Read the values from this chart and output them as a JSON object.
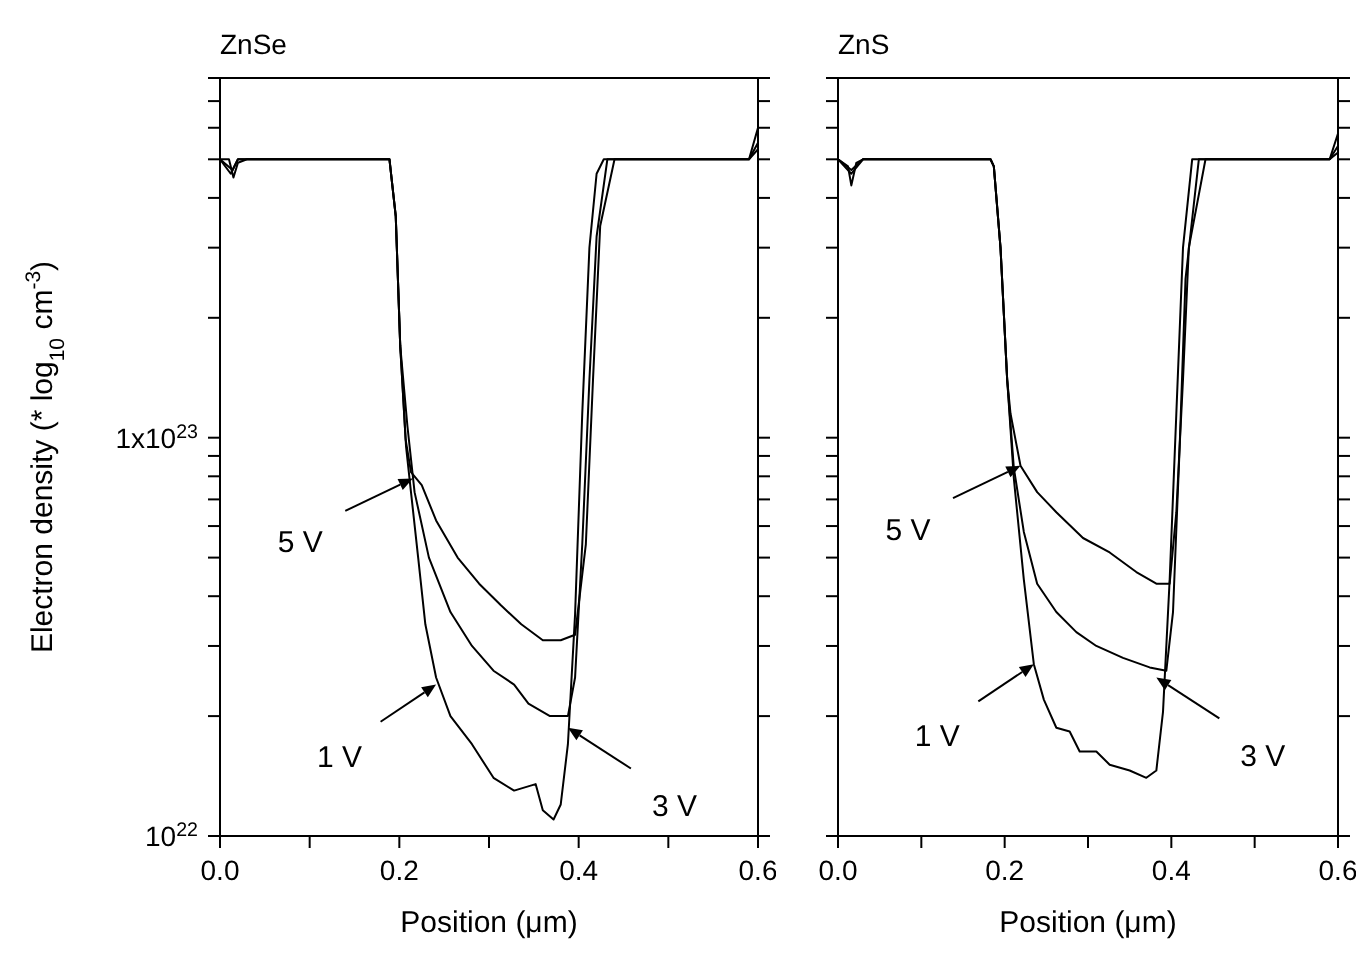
{
  "chart_data": [
    {
      "type": "line",
      "title": "ZnSe",
      "xlabel": "Position (μm)",
      "ylabel": "Electron density (* log$_{10}$ cm$^{-3}$)",
      "log": true,
      "marker": "none",
      "line_style": "solid",
      "xlim": [
        0,
        0.6
      ],
      "xticks": [
        {
          "value": 0,
          "label": "0.0"
        },
        {
          "value": 0.1,
          "label": null
        },
        0.2,
        {
          "value": 0.3,
          "label": null
        },
        0.4,
        {
          "value": 0.5,
          "label": null
        },
        0.6
      ],
      "ylim": [
        1e+22,
        8e+23
      ],
      "yticks": [
        {
          "value": 1e+22,
          "label": "10$^{22}$"
        },
        {
          "value": 2e+22,
          "label": null
        },
        {
          "value": 3e+22,
          "label": null
        },
        {
          "value": 4e+22,
          "label": null
        },
        {
          "value": 5e+22,
          "label": null
        },
        {
          "value": 6e+22,
          "label": null
        },
        {
          "value": 7e+22,
          "label": null
        },
        {
          "value": 8e+22,
          "label": null
        },
        {
          "value": 9e+22,
          "label": null
        },
        {
          "value": 1e+23,
          "label": "1x10$^{23}$"
        },
        {
          "value": 2e+23,
          "label": null
        },
        {
          "value": 3e+23,
          "label": null
        },
        {
          "value": 4e+23,
          "label": null
        },
        {
          "value": 5e+23,
          "label": null
        },
        {
          "value": 6e+23,
          "label": null
        },
        {
          "value": 7e+23,
          "label": null
        },
        {
          "value": 8e+23,
          "label": null
        }
      ],
      "series": [
        {
          "color": "#000000",
          "x": [
            0,
            0.01,
            0.015,
            0.02,
            0.03,
            0.1,
            0.189,
            0.196,
            0.201,
            0.2075,
            0.213,
            0.221,
            0.229,
            0.241,
            0.257,
            0.281,
            0.305,
            0.328,
            0.352,
            0.36,
            0.372,
            0.38,
            0.388,
            0.396,
            0.404,
            0.412,
            0.42,
            0.428,
            0.5,
            0.59,
            0.6
          ],
          "values": [
            5e+23,
            5e+23,
            4.5e+23,
            4.9e+23,
            5e+23,
            5e+23,
            5e+23,
            3.6e+23,
            1.7e+23,
            9.5e+22,
            7.3e+22,
            5e+22,
            3.4e+22,
            2.5e+22,
            2e+22,
            1.7e+22,
            1.4e+22,
            1.3e+22,
            1.35e+22,
            1.16e+22,
            1.1e+22,
            1.2e+22,
            1.7e+22,
            3.6e+22,
            1.15e+23,
            3e+23,
            4.6e+23,
            5e+23,
            5e+23,
            5e+23,
            6e+23
          ]
        },
        {
          "color": "#000000",
          "x": [
            0,
            0.012,
            0.02,
            0.03,
            0.1,
            0.189,
            0.196,
            0.201,
            0.209,
            0.217,
            0.233,
            0.257,
            0.281,
            0.305,
            0.328,
            0.344,
            0.368,
            0.388,
            0.396,
            0.404,
            0.412,
            0.42,
            0.432,
            0.5,
            0.59,
            0.6
          ],
          "values": [
            5e+23,
            4.6e+23,
            5e+23,
            5e+23,
            5e+23,
            5e+23,
            3.6e+23,
            1.7e+23,
            1.07e+23,
            7.3e+22,
            5e+22,
            3.65e+22,
            3e+22,
            2.6e+22,
            2.4e+22,
            2.15e+22,
            2e+22,
            2e+22,
            2.5e+22,
            5.4e+22,
            1.4e+23,
            3.2e+23,
            5e+23,
            5e+23,
            5e+23,
            5.5e+23
          ]
        },
        {
          "color": "#000000",
          "x": [
            0,
            0.014,
            0.02,
            0.03,
            0.1,
            0.189,
            0.196,
            0.201,
            0.207,
            0.213,
            0.225,
            0.241,
            0.265,
            0.289,
            0.313,
            0.336,
            0.36,
            0.38,
            0.396,
            0.408,
            0.416,
            0.424,
            0.44,
            0.5,
            0.59,
            0.6
          ],
          "values": [
            5e+23,
            4.7e+23,
            5e+23,
            5e+23,
            5e+23,
            5e+23,
            3.6e+23,
            1.7e+23,
            9.9e+22,
            8.2e+22,
            7.6e+22,
            6.2e+22,
            5e+22,
            4.3e+22,
            3.8e+22,
            3.4e+22,
            3.1e+22,
            3.1e+22,
            3.2e+22,
            5.4e+22,
            1.4e+23,
            3.4e+23,
            5e+23,
            5e+23,
            5e+23,
            5.3e+23
          ]
        }
      ],
      "annotations": [
        {
          "text": "5 V",
          "x": 0.215,
          "y": 7.9e+22
        },
        {
          "text": "1 V",
          "x": 0.241,
          "y": 2.4e+22
        },
        {
          "text": "3 V",
          "x": 0.388,
          "y": 1.87e+22
        }
      ]
    },
    {
      "type": "line",
      "title": "ZnS",
      "xlabel": "Position (μm)",
      "log": true,
      "marker": "none",
      "line_style": "solid",
      "tick_labels": "x",
      "xlim": [
        0,
        0.6
      ],
      "xticks": [
        {
          "value": 0,
          "label": "0.0"
        },
        {
          "value": 0.1,
          "label": null
        },
        0.2,
        {
          "value": 0.3,
          "label": null
        },
        0.4,
        {
          "value": 0.5,
          "label": null
        },
        0.6
      ],
      "ylim": [
        1e+22,
        8e+23
      ],
      "yticks": [
        {
          "value": 1e+22,
          "label": null
        },
        {
          "value": 2e+22,
          "label": null
        },
        {
          "value": 3e+22,
          "label": null
        },
        {
          "value": 4e+22,
          "label": null
        },
        {
          "value": 5e+22,
          "label": null
        },
        {
          "value": 6e+22,
          "label": null
        },
        {
          "value": 7e+22,
          "label": null
        },
        {
          "value": 8e+22,
          "label": null
        },
        {
          "value": 9e+22,
          "label": null
        },
        {
          "value": 1e+23,
          "label": null
        },
        {
          "value": 2e+23,
          "label": null
        },
        {
          "value": 3e+23,
          "label": null
        },
        {
          "value": 4e+23,
          "label": null
        },
        {
          "value": 5e+23,
          "label": null
        },
        {
          "value": 6e+23,
          "label": null
        },
        {
          "value": 7e+23,
          "label": null
        },
        {
          "value": 8e+23,
          "label": null
        }
      ],
      "series": [
        {
          "color": "#000000",
          "x": [
            0,
            0.012,
            0.016,
            0.022,
            0.03,
            0.1,
            0.183,
            0.187,
            0.195,
            0.203,
            0.211,
            0.223,
            0.235,
            0.247,
            0.262,
            0.278,
            0.29,
            0.31,
            0.326,
            0.35,
            0.37,
            0.382,
            0.39,
            0.398,
            0.406,
            0.414,
            0.425,
            0.5,
            0.59,
            0.6
          ],
          "values": [
            5e+23,
            4.8e+23,
            4.3e+23,
            4.9e+23,
            5e+23,
            5e+23,
            5e+23,
            4.8e+23,
            3e+23,
            1.4e+23,
            7.9e+22,
            4.4e+22,
            2.7e+22,
            2.2e+22,
            1.87e+22,
            1.83e+22,
            1.63e+22,
            1.63e+22,
            1.51e+22,
            1.46e+22,
            1.4e+22,
            1.46e+22,
            2.05e+22,
            4.4e+22,
            1.15e+23,
            3e+23,
            5e+23,
            5e+23,
            5e+23,
            5.8e+23
          ]
        },
        {
          "color": "#000000",
          "x": [
            0,
            0.016,
            0.03,
            0.1,
            0.183,
            0.187,
            0.195,
            0.203,
            0.211,
            0.223,
            0.239,
            0.262,
            0.286,
            0.31,
            0.342,
            0.374,
            0.394,
            0.402,
            0.41,
            0.417,
            0.433,
            0.5,
            0.59,
            0.6
          ],
          "values": [
            5e+23,
            4.6e+23,
            5e+23,
            5e+23,
            5e+23,
            4.8e+23,
            3e+23,
            1.4e+23,
            8.4e+22,
            5.8e+22,
            4.3e+22,
            3.65e+22,
            3.25e+22,
            3e+22,
            2.8e+22,
            2.65e+22,
            2.6e+22,
            3.65e+22,
            9.5e+22,
            2.5e+23,
            5e+23,
            5e+23,
            5e+23,
            5.4e+23
          ]
        },
        {
          "color": "#000000",
          "x": [
            0,
            0.016,
            0.03,
            0.1,
            0.183,
            0.187,
            0.195,
            0.203,
            0.207,
            0.219,
            0.239,
            0.262,
            0.294,
            0.326,
            0.358,
            0.382,
            0.398,
            0.406,
            0.414,
            0.421,
            0.441,
            0.5,
            0.59,
            0.6
          ],
          "values": [
            5e+23,
            4.7e+23,
            5e+23,
            5e+23,
            5e+23,
            4.8e+23,
            3e+23,
            1.4e+23,
            1.15e+23,
            8.5e+22,
            7.3e+22,
            6.5e+22,
            5.6e+22,
            5.15e+22,
            4.6e+22,
            4.3e+22,
            4.3e+22,
            6.5e+22,
            1.4e+23,
            3e+23,
            5e+23,
            5e+23,
            5e+23,
            5.2e+23
          ]
        }
      ],
      "annotations": [
        {
          "text": "5 V",
          "x": 0.219,
          "y": 8.5e+22
        },
        {
          "text": "1 V",
          "x": 0.235,
          "y": 2.7e+22
        },
        {
          "text": "3 V",
          "x": 0.382,
          "y": 2.5e+22
        }
      ]
    }
  ]
}
